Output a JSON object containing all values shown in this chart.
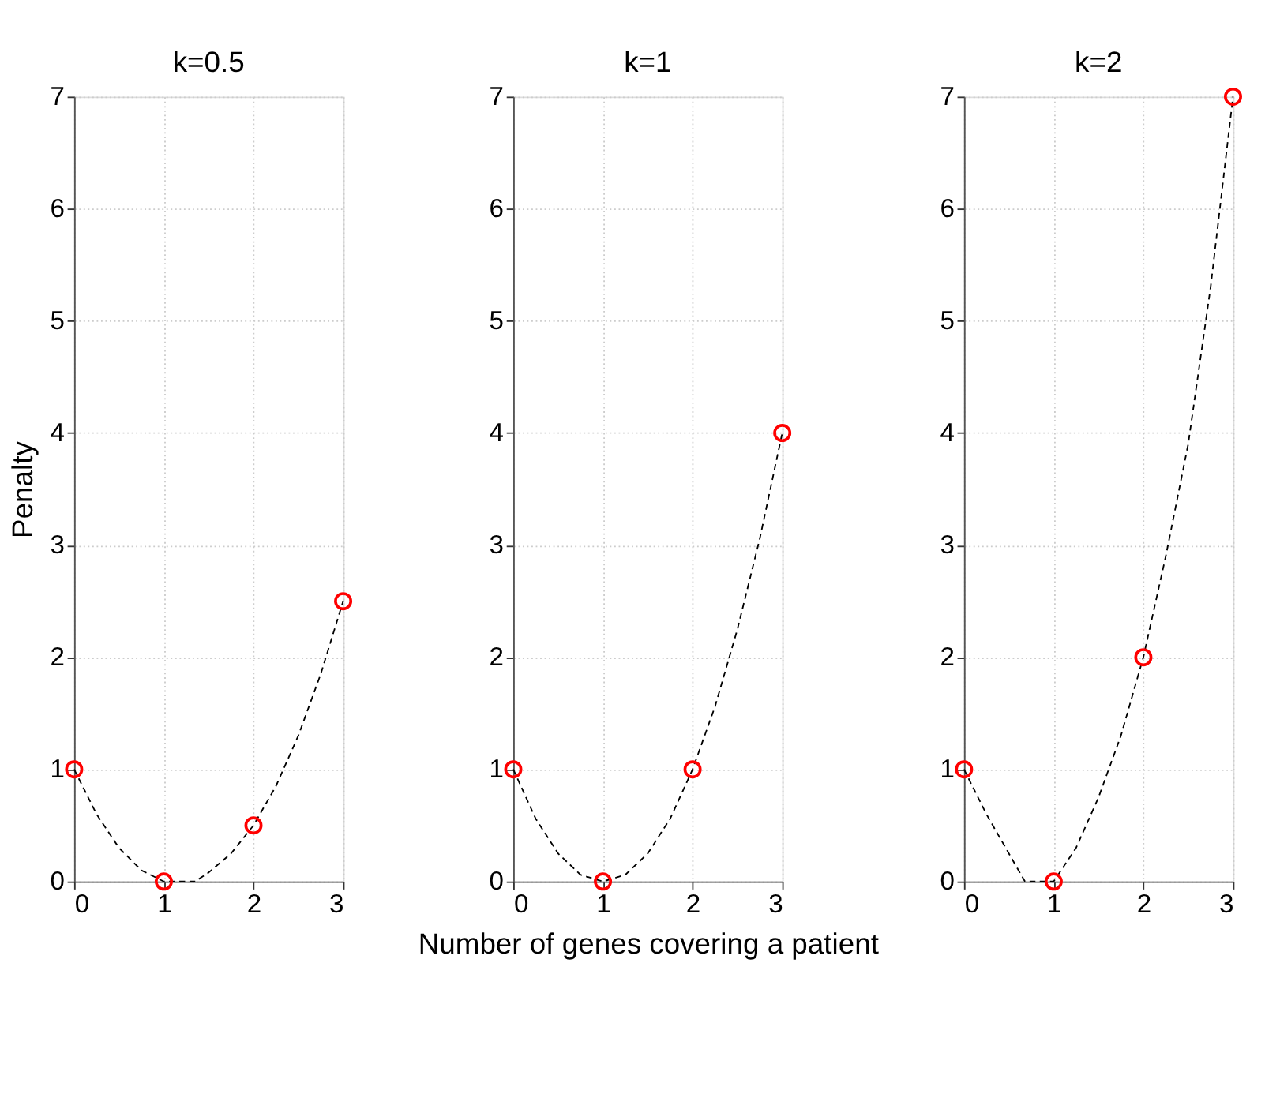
{
  "chart_data": [
    {
      "type": "line",
      "title": "k=0.5",
      "ylabel": "Penalty",
      "xlim": [
        0,
        3
      ],
      "xticks": [
        0,
        1,
        2,
        3
      ],
      "ylim": [
        0,
        7
      ],
      "yticks": [
        0,
        1,
        2,
        3,
        4,
        5,
        6,
        7
      ],
      "grid": true,
      "series": [
        {
          "color": "#000000",
          "line_style": "dashed",
          "marker": "none",
          "x": [
            0,
            0.25,
            0.5,
            0.75,
            1,
            1.25,
            1.35,
            1.5,
            1.75,
            2,
            2.25,
            2.5,
            2.75,
            3
          ],
          "values": [
            1,
            0.6,
            0.3,
            0.1,
            0,
            0,
            0,
            0.08,
            0.25,
            0.5,
            0.85,
            1.3,
            1.85,
            2.5
          ]
        },
        {
          "type": "scatter",
          "color": "#ff0000",
          "marker": "circle",
          "x": [
            0,
            1,
            2,
            3
          ],
          "values": [
            1,
            0,
            0.5,
            2.5
          ]
        }
      ]
    },
    {
      "type": "line",
      "title": "k=1",
      "xlabel": "Number of genes covering a patient",
      "xlim": [
        0,
        3
      ],
      "xticks": [
        0,
        1,
        2,
        3
      ],
      "ylim": [
        0,
        7
      ],
      "yticks": [
        0,
        1,
        2,
        3,
        4,
        5,
        6,
        7
      ],
      "grid": true,
      "series": [
        {
          "color": "#000000",
          "line_style": "dashed",
          "marker": "none",
          "x": [
            0,
            0.25,
            0.5,
            0.75,
            1,
            1.25,
            1.5,
            1.75,
            2,
            2.25,
            2.5,
            2.75,
            3
          ],
          "values": [
            1,
            0.56,
            0.25,
            0.06,
            0,
            0.06,
            0.25,
            0.56,
            1,
            1.56,
            2.25,
            3.06,
            4
          ]
        },
        {
          "type": "scatter",
          "color": "#ff0000",
          "marker": "circle",
          "x": [
            0,
            1,
            2,
            3
          ],
          "values": [
            1,
            0,
            1,
            4
          ]
        }
      ]
    },
    {
      "type": "line",
      "title": "k=2",
      "xlim": [
        0,
        3
      ],
      "xticks": [
        0,
        1,
        2,
        3
      ],
      "ylim": [
        0,
        7
      ],
      "yticks": [
        0,
        1,
        2,
        3,
        4,
        5,
        6,
        7
      ],
      "grid": true,
      "series": [
        {
          "color": "#000000",
          "line_style": "dashed",
          "marker": "none",
          "x": [
            0,
            0.25,
            0.5,
            0.68,
            0.85,
            1,
            1.25,
            1.5,
            1.75,
            2,
            2.25,
            2.5,
            2.75,
            3
          ],
          "values": [
            1,
            0.6,
            0.25,
            0,
            0,
            0,
            0.3,
            0.75,
            1.3,
            2,
            2.9,
            3.9,
            5.3,
            7
          ]
        },
        {
          "type": "scatter",
          "color": "#ff0000",
          "marker": "circle",
          "x": [
            0,
            1,
            2,
            3
          ],
          "values": [
            1,
            0,
            2,
            7
          ]
        }
      ]
    }
  ]
}
